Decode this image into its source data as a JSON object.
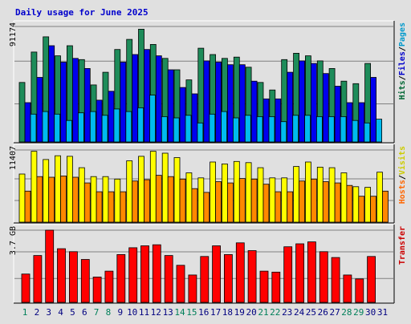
{
  "chart_data": {
    "type": "bar",
    "title": "Daily usage for June 2025",
    "categories": [
      "1",
      "2",
      "3",
      "4",
      "5",
      "6",
      "7",
      "8",
      "9",
      "10",
      "11",
      "12",
      "13",
      "14",
      "15",
      "16",
      "17",
      "18",
      "19",
      "20",
      "21",
      "22",
      "23",
      "24",
      "25",
      "26",
      "27",
      "28",
      "29",
      "30",
      "31"
    ],
    "weekend_categories": [
      "1",
      "7",
      "8",
      "14",
      "15",
      "21",
      "22",
      "28",
      "29"
    ],
    "panels": [
      {
        "id": "hits",
        "max_label": "91174",
        "ymax": 91174,
        "right_label_parts": [
          {
            "text": "Hits",
            "color": "#006633"
          },
          {
            "text": "/",
            "color": "#000000"
          },
          {
            "text": "Files",
            "color": "#0000cc"
          },
          {
            "text": "/",
            "color": "#000000"
          },
          {
            "text": "Pages",
            "color": "#0099cc"
          }
        ],
        "series": [
          {
            "name": "Hits",
            "color": "#1e8c5a",
            "values": [
              47000,
              71000,
              83000,
              68000,
              76000,
              65000,
              45000,
              55000,
              73000,
              81000,
              89000,
              77000,
              66000,
              57000,
              49000,
              74000,
              69000,
              66000,
              67000,
              59000,
              47000,
              41000,
              65000,
              70000,
              68000,
              64000,
              58000,
              48000,
              46000,
              62000,
              0
            ]
          },
          {
            "name": "Files",
            "color": "#0000ee",
            "values": [
              31000,
              51000,
              76000,
              63000,
              66000,
              58000,
              33000,
              40000,
              63000,
              69000,
              73000,
              68000,
              57000,
              43000,
              38000,
              64000,
              63000,
              61000,
              61000,
              48000,
              34000,
              34000,
              55000,
              64000,
              62000,
              54000,
              44000,
              31000,
              31000,
              51000,
              0
            ]
          },
          {
            "name": "Pages",
            "color": "#00bbee",
            "values": [
              22000,
              24000,
              22000,
              17000,
              23000,
              24000,
              21000,
              26000,
              24000,
              27000,
              37000,
              20000,
              19000,
              21000,
              15000,
              22000,
              24000,
              19000,
              21000,
              20000,
              20000,
              16000,
              21000,
              21000,
              20000,
              20000,
              20000,
              17000,
              15000,
              18000,
              0
            ]
          }
        ]
      },
      {
        "id": "visits",
        "max_label": "11407",
        "ymax": 11407,
        "right_label_parts": [
          {
            "text": "Hosts",
            "color": "#ff6600"
          },
          {
            "text": "/",
            "color": "#000000"
          },
          {
            "text": "Visits",
            "color": "#cccc00"
          }
        ],
        "series": [
          {
            "name": "Visits",
            "color": "#ffff00",
            "values": [
              7600,
              11200,
              9900,
              10500,
              10400,
              8600,
              7200,
              7200,
              6800,
              9700,
              10400,
              11200,
              10900,
              10200,
              7800,
              7000,
              9500,
              9200,
              9600,
              9400,
              8600,
              7000,
              7000,
              8800,
              9500,
              8700,
              8600,
              7800,
              5600,
              5500,
              7900
            ]
          },
          {
            "name": "Hosts",
            "color": "#ff8800",
            "values": [
              4900,
              7200,
              7100,
              7300,
              7100,
              6200,
              4800,
              4800,
              4800,
              6500,
              6700,
              7400,
              7200,
              6800,
              5300,
              4700,
              6400,
              6200,
              6900,
              6800,
              6000,
              4800,
              4800,
              6500,
              6800,
              6400,
              6200,
              5800,
              4100,
              4100,
              4900
            ]
          }
        ]
      },
      {
        "id": "transfer",
        "max_label": "3.7 GB",
        "ymax": 3.7,
        "right_label_parts": [
          {
            "text": "Transfer",
            "color": "#cc0000"
          }
        ],
        "series": [
          {
            "name": "Transfer",
            "color": "#ff0000",
            "values": [
              1.45,
              2.4,
              3.7,
              2.75,
              2.6,
              2.2,
              1.3,
              1.6,
              2.45,
              2.8,
              2.9,
              2.95,
              2.4,
              1.9,
              1.4,
              2.35,
              2.9,
              2.45,
              3.05,
              2.65,
              1.6,
              1.55,
              2.85,
              3.0,
              3.1,
              2.6,
              2.3,
              1.4,
              1.2,
              2.35,
              0
            ]
          }
        ]
      }
    ]
  }
}
